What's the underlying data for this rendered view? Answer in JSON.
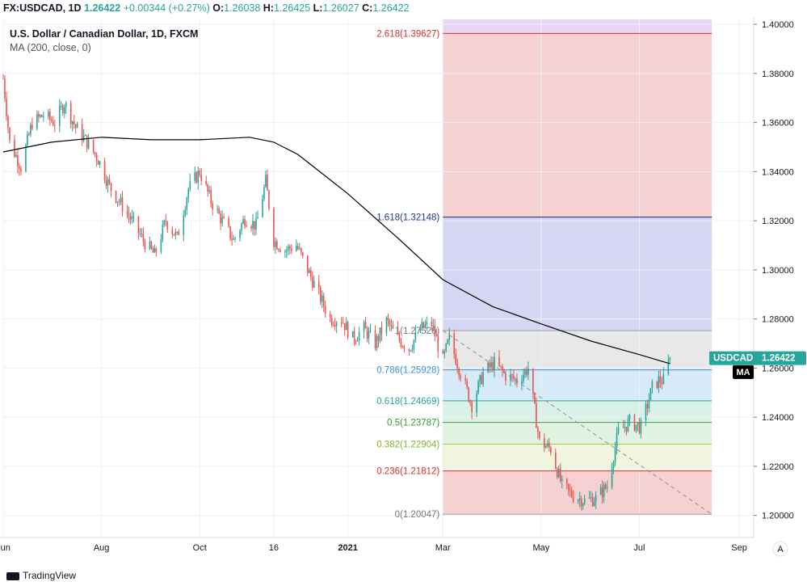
{
  "header": {
    "symbol": "FX:USDCAD, 1D",
    "last": "1.26422",
    "change": "+0.00344 (+0.27%)",
    "o_label": "O:",
    "o": "1.26038",
    "h_label": "H:",
    "h": "1.26425",
    "l_label": "L:",
    "l": "1.26027",
    "c_label": "C:",
    "c": "1.26422"
  },
  "legend": {
    "title": "U.S. Dollar / Canadian Dollar, 1D, FXCM",
    "indicator": "MA (200, close, 0)"
  },
  "footer": {
    "brand": "TradingView"
  },
  "price_tag": {
    "symbol": "USDCAD",
    "value": "1.26422"
  },
  "ma_tag": "MA",
  "auto_button": "A",
  "colors": {
    "up": "#26a69a",
    "down": "#ef5350",
    "ma_line": "#000000",
    "tag_bg": "#26a69a"
  },
  "chart_data": {
    "type": "candlestick",
    "ylim": [
      1.191,
      1.402
    ],
    "y_ticks": [
      "1.40000",
      "1.38000",
      "1.36000",
      "1.34000",
      "1.32000",
      "1.30000",
      "1.28000",
      "1.26000",
      "1.24000",
      "1.22000",
      "1.20000"
    ],
    "y_tick_values": [
      1.4,
      1.38,
      1.36,
      1.34,
      1.32,
      1.3,
      1.28,
      1.26,
      1.24,
      1.22,
      1.2
    ],
    "x_ticks": [
      {
        "label": "Jun",
        "date": "2020-06-01"
      },
      {
        "label": "Aug",
        "date": "2020-08-01"
      },
      {
        "label": "Oct",
        "date": "2020-10-01"
      },
      {
        "label": "16",
        "date": "2020-11-16"
      },
      {
        "label": "2021",
        "date": "2021-01-01"
      },
      {
        "label": "Mar",
        "date": "2021-03-01"
      },
      {
        "label": "May",
        "date": "2021-05-01"
      },
      {
        "label": "Jul",
        "date": "2021-07-01"
      },
      {
        "label": "Sep",
        "date": "2021-09-01"
      }
    ],
    "date_range": [
      "2020-06-01",
      "2021-09-10"
    ],
    "price_path": [
      [
        "2020-06-01",
        1.378
      ],
      [
        "2020-06-05",
        1.352
      ],
      [
        "2020-06-12",
        1.342
      ],
      [
        "2020-06-19",
        1.36
      ],
      [
        "2020-06-26",
        1.363
      ],
      [
        "2020-07-03",
        1.36
      ],
      [
        "2020-07-09",
        1.368
      ],
      [
        "2020-07-16",
        1.358
      ],
      [
        "2020-07-23",
        1.352
      ],
      [
        "2020-07-30",
        1.345
      ],
      [
        "2020-08-06",
        1.334
      ],
      [
        "2020-08-13",
        1.327
      ],
      [
        "2020-08-20",
        1.32
      ],
      [
        "2020-08-27",
        1.312
      ],
      [
        "2020-09-03",
        1.306
      ],
      [
        "2020-09-10",
        1.32
      ],
      [
        "2020-09-17",
        1.313
      ],
      [
        "2020-09-24",
        1.333
      ],
      [
        "2020-10-01",
        1.34
      ],
      [
        "2020-10-08",
        1.328
      ],
      [
        "2020-10-15",
        1.32
      ],
      [
        "2020-10-22",
        1.312
      ],
      [
        "2020-10-29",
        1.321
      ],
      [
        "2020-11-05",
        1.318
      ],
      [
        "2020-11-11",
        1.336
      ],
      [
        "2020-11-16",
        1.312
      ],
      [
        "2020-11-23",
        1.308
      ],
      [
        "2020-11-30",
        1.31
      ],
      [
        "2020-12-07",
        1.3
      ],
      [
        "2020-12-14",
        1.29
      ],
      [
        "2020-12-21",
        1.28
      ],
      [
        "2020-12-28",
        1.28
      ],
      [
        "2021-01-04",
        1.272
      ],
      [
        "2021-01-11",
        1.276
      ],
      [
        "2021-01-18",
        1.27
      ],
      [
        "2021-01-25",
        1.279
      ],
      [
        "2021-02-01",
        1.272
      ],
      [
        "2021-02-08",
        1.268
      ],
      [
        "2021-02-15",
        1.276
      ],
      [
        "2021-02-22",
        1.278
      ],
      [
        "2021-03-01",
        1.263
      ],
      [
        "2021-03-05",
        1.272
      ],
      [
        "2021-03-12",
        1.258
      ],
      [
        "2021-03-19",
        1.245
      ],
      [
        "2021-03-26",
        1.258
      ],
      [
        "2021-04-02",
        1.262
      ],
      [
        "2021-04-09",
        1.257
      ],
      [
        "2021-04-16",
        1.255
      ],
      [
        "2021-04-23",
        1.26
      ],
      [
        "2021-04-30",
        1.23
      ],
      [
        "2021-05-07",
        1.227
      ],
      [
        "2021-05-14",
        1.212
      ],
      [
        "2021-05-21",
        1.208
      ],
      [
        "2021-05-28",
        1.206
      ],
      [
        "2021-06-04",
        1.207
      ],
      [
        "2021-06-11",
        1.212
      ],
      [
        "2021-06-18",
        1.234
      ],
      [
        "2021-06-25",
        1.238
      ],
      [
        "2021-07-02",
        1.236
      ],
      [
        "2021-07-09",
        1.252
      ],
      [
        "2021-07-13",
        1.255
      ],
      [
        "2021-07-16",
        1.255
      ],
      [
        "2021-07-20",
        1.2642
      ]
    ],
    "ma_200": [
      [
        "2020-06-01",
        1.348
      ],
      [
        "2020-07-01",
        1.352
      ],
      [
        "2020-08-01",
        1.354
      ],
      [
        "2020-09-01",
        1.353
      ],
      [
        "2020-10-01",
        1.353
      ],
      [
        "2020-11-01",
        1.354
      ],
      [
        "2020-11-16",
        1.352
      ],
      [
        "2020-12-01",
        1.347
      ],
      [
        "2021-01-01",
        1.331
      ],
      [
        "2021-02-01",
        1.313
      ],
      [
        "2021-03-01",
        1.296
      ],
      [
        "2021-04-01",
        1.285
      ],
      [
        "2021-05-01",
        1.278
      ],
      [
        "2021-06-01",
        1.271
      ],
      [
        "2021-07-01",
        1.2655
      ],
      [
        "2021-07-20",
        1.2618
      ]
    ],
    "fib": {
      "start_date": "2021-03-01",
      "end_date": "2021-08-15",
      "trend_from": [
        "2021-03-01",
        1.27526
      ],
      "trend_to": [
        "2021-08-15",
        1.20047
      ],
      "levels": [
        {
          "label": "2.618(1.39627)",
          "value": 1.39627,
          "line": "#d32f2f",
          "fill": "#f4cccc",
          "text_color": "#d32f2f"
        },
        {
          "label": "1.618(1.32148)",
          "value": 1.32148,
          "line": "#1a237e",
          "fill": "#d0d0f3",
          "text_color": "#283593"
        },
        {
          "label": "1(1.27526)",
          "value": 1.27526,
          "line": "#9e9e9e",
          "fill": "#e6e6e6",
          "text_color": "#777777"
        },
        {
          "label": "0.786(1.25928)",
          "value": 1.25928,
          "line": "#3c8fd6",
          "fill": "#d2e9f6",
          "text_color": "#3c8fd6"
        },
        {
          "label": "0.618(1.24669)",
          "value": 1.24669,
          "line": "#26a69a",
          "fill": "#d6f0e6",
          "text_color": "#26a69a"
        },
        {
          "label": "0.5(1.23787)",
          "value": 1.23787,
          "line": "#43a047",
          "fill": "#ddf2dd",
          "text_color": "#2e9e2e"
        },
        {
          "label": "0.382(1.22904)",
          "value": 1.22904,
          "line": "#9ccc3a",
          "fill": "#eef5d9",
          "text_color": "#8ab22e"
        },
        {
          "label": "0.236(1.21812)",
          "value": 1.21812,
          "line": "#d32f2f",
          "fill": "#f4cccc",
          "text_color": "#d32f2f"
        },
        {
          "label": "0(1.20047)",
          "value": 1.20047,
          "line": "#9e9e9e",
          "fill": "#f4cccc",
          "text_color": "#777777"
        }
      ],
      "top_fill": "#e9d6f7"
    }
  }
}
